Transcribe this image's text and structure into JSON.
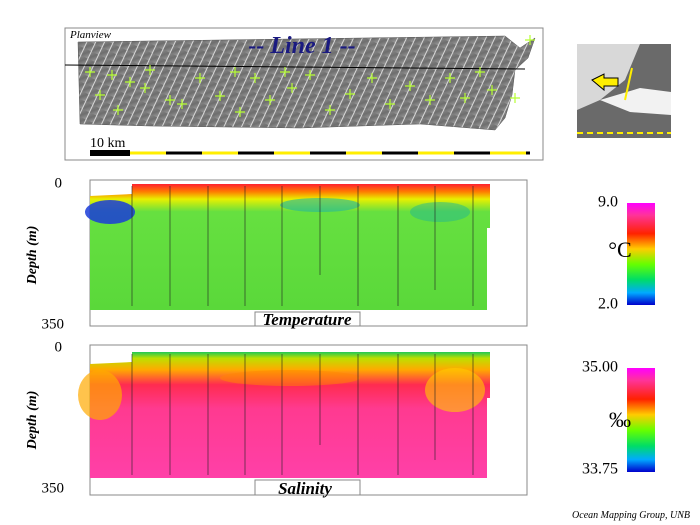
{
  "planview": {
    "label": "Planview",
    "title": "-- Line 1 --",
    "scale": "10 km"
  },
  "temperature": {
    "axis_label": "Depth (m)",
    "depth_top": "0",
    "depth_bottom": "350",
    "label": "Temperature",
    "colorbar": {
      "max": "9.0",
      "min": "2.0",
      "unit": "°C"
    }
  },
  "salinity": {
    "axis_label": "Depth (m)",
    "depth_top": "0",
    "depth_bottom": "350",
    "label": "Salinity",
    "colorbar": {
      "max": "35.00",
      "min": "33.75",
      "unit": "‰"
    }
  },
  "credit": "Ocean Mapping Group, UNB"
}
